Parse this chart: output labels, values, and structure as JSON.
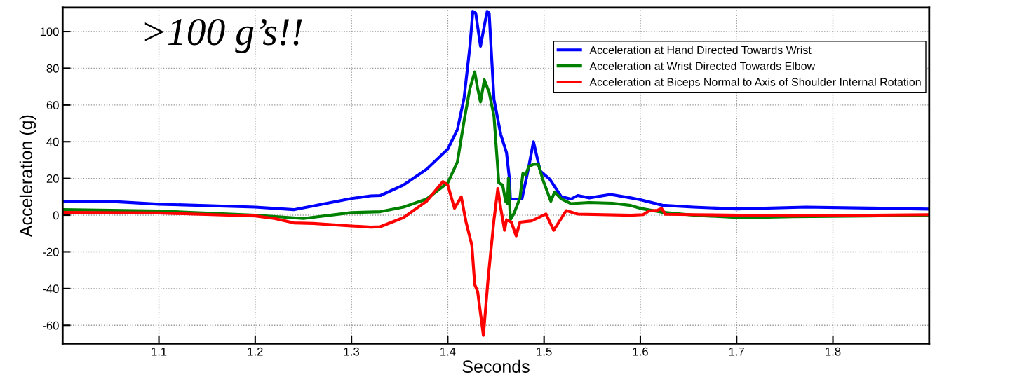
{
  "chart_data": {
    "type": "line",
    "xlabel": "Seconds",
    "ylabel": "Acceleration (g)",
    "annotations": [
      ">100 g’s!!"
    ],
    "xlim": [
      1.0,
      1.9
    ],
    "xticks": [
      1.1,
      1.2,
      1.3,
      1.4,
      1.5,
      1.6,
      1.7,
      1.8
    ],
    "ylim": [
      -70,
      113
    ],
    "yticks": [
      -60,
      -40,
      -20,
      0,
      20,
      40,
      60,
      80,
      100
    ],
    "grid": true,
    "legend": "top right",
    "line_style": "solid",
    "marker": "none",
    "series": [
      {
        "name": "Acceleration at Hand Directed Towards Wrist",
        "color": "#0000ff",
        "x": [
          1.0,
          1.05,
          1.1,
          1.2,
          1.24,
          1.3,
          1.32,
          1.33,
          1.354,
          1.378,
          1.4,
          1.41,
          1.417,
          1.423,
          1.426,
          1.429,
          1.434,
          1.439,
          1.441,
          1.443,
          1.448,
          1.455,
          1.461,
          1.464,
          1.465,
          1.477,
          1.484,
          1.489,
          1.496,
          1.506,
          1.518,
          1.528,
          1.535,
          1.547,
          1.569,
          1.59,
          1.6,
          1.623,
          1.655,
          1.7,
          1.772,
          1.837,
          1.9
        ],
        "values": [
          7.3,
          7.5,
          6.0,
          4.4,
          3.0,
          9.1,
          10.5,
          10.7,
          16.4,
          25,
          36,
          46.6,
          64,
          92,
          111,
          110,
          92,
          106,
          111,
          110,
          63,
          44,
          34,
          20,
          8.8,
          8.8,
          26,
          40,
          24,
          19.5,
          10,
          8.8,
          10.7,
          9.4,
          11.3,
          9.4,
          8.4,
          5.4,
          4.4,
          3.4,
          4.4,
          3.9,
          3.3
        ]
      },
      {
        "name": "Acceleration at Wrist Directed Towards Elbow",
        "color": "#008000",
        "x": [
          1.0,
          1.1,
          1.2,
          1.25,
          1.3,
          1.33,
          1.354,
          1.378,
          1.4,
          1.41,
          1.417,
          1.423,
          1.428,
          1.431,
          1.434,
          1.438,
          1.443,
          1.448,
          1.453,
          1.457,
          1.46,
          1.462,
          1.463,
          1.465,
          1.469,
          1.475,
          1.478,
          1.481,
          1.484,
          1.489,
          1.494,
          1.499,
          1.507,
          1.511,
          1.518,
          1.528,
          1.547,
          1.571,
          1.59,
          1.6,
          1.623,
          1.655,
          1.706,
          1.758,
          1.837,
          1.9
        ],
        "values": [
          3.0,
          2.3,
          0,
          -1.8,
          1.4,
          1.9,
          4.4,
          8.8,
          17.6,
          29,
          51.6,
          69,
          78,
          69,
          61.7,
          73.7,
          66.8,
          54,
          17.6,
          16.4,
          7.6,
          6.3,
          20,
          -2.5,
          1.3,
          9.4,
          22.7,
          22,
          26.4,
          27.7,
          27.7,
          18.9,
          7.6,
          12.6,
          8.8,
          6.3,
          6.9,
          6.5,
          5.3,
          3.7,
          1.6,
          0,
          -1.4,
          -0.8,
          -0.4,
          0
        ]
      },
      {
        "name": "Acceleration at Biceps Normal to Axis of Shoulder Internal Rotation",
        "color": "#ff0000",
        "x": [
          1.0,
          1.1,
          1.2,
          1.22,
          1.24,
          1.26,
          1.3,
          1.32,
          1.33,
          1.354,
          1.378,
          1.395,
          1.4,
          1.407,
          1.414,
          1.419,
          1.425,
          1.428,
          1.431,
          1.437,
          1.442,
          1.448,
          1.452,
          1.455,
          1.459,
          1.461,
          1.466,
          1.471,
          1.475,
          1.487,
          1.502,
          1.51,
          1.523,
          1.535,
          1.59,
          1.603,
          1.609,
          1.618,
          1.622,
          1.626,
          1.655,
          1.758,
          1.9
        ],
        "values": [
          1.5,
          1.2,
          -0.4,
          -1.8,
          -4.2,
          -4.5,
          -5.9,
          -6.5,
          -6.3,
          -1.3,
          7.6,
          18.3,
          16.4,
          3.8,
          10,
          -3.8,
          -16.4,
          -37.8,
          -41.6,
          -65.5,
          -34,
          -2.5,
          14.5,
          3.8,
          -8.2,
          -2.5,
          -3.8,
          -11.3,
          -3.8,
          -3.1,
          0.6,
          -8.2,
          2.5,
          0.6,
          0,
          0.3,
          2.3,
          2.7,
          3.7,
          0.5,
          0.3,
          -0.4,
          0.3
        ]
      }
    ]
  }
}
